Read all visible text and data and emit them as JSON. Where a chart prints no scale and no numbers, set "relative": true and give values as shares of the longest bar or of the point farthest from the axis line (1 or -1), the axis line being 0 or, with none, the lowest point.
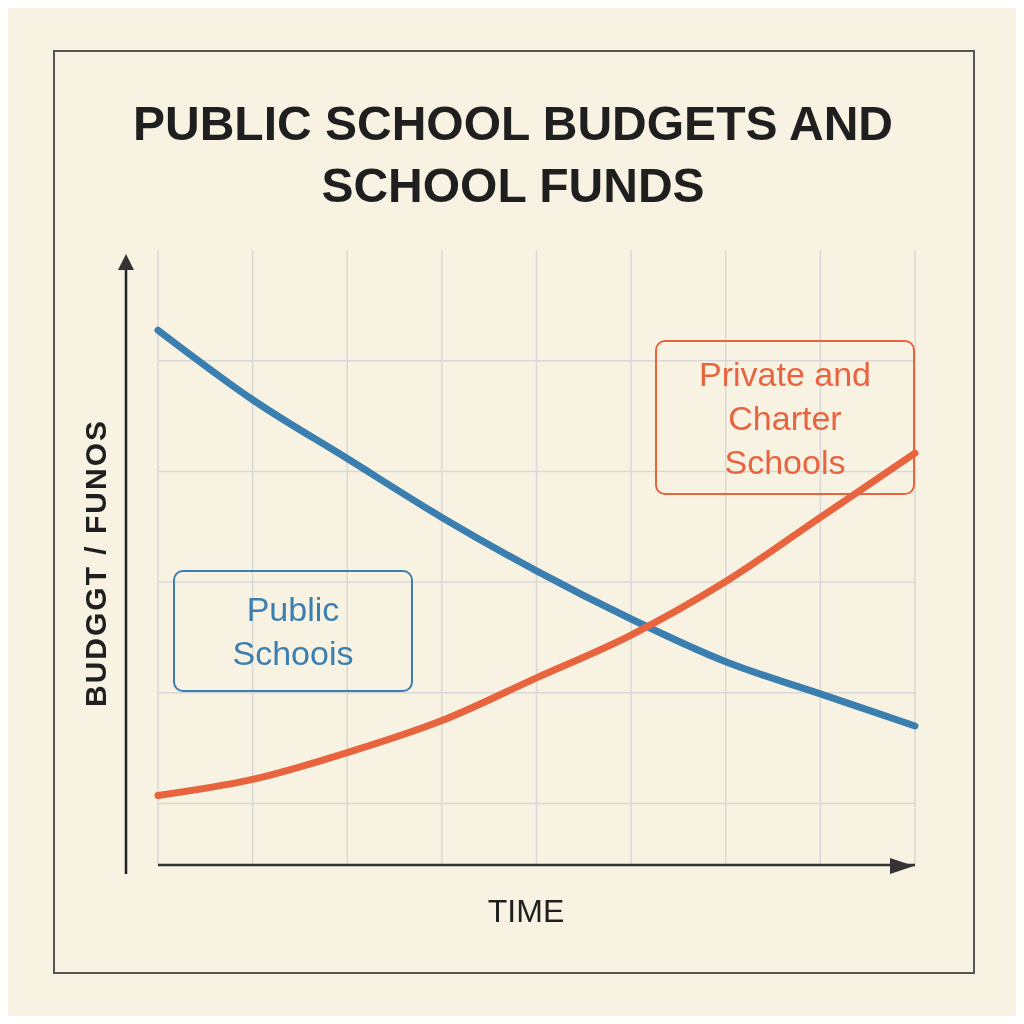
{
  "chart_data": {
    "type": "line",
    "title": "PUBLIC SCHOOL BUDGETS AND SCHOOL FUNDS",
    "xlabel": "TIME",
    "ylabel": "BUDGGT / FUNOS",
    "relative": true,
    "grid": true,
    "legend": false,
    "marker": "none",
    "line_style": "solid",
    "categories": [
      null,
      null,
      null,
      null,
      null,
      null,
      null,
      null,
      null
    ],
    "series": [
      {
        "name": "Public Schoois",
        "color": "#3a7fb0",
        "values": [
          1,
          0.87,
          0.76,
          0.65,
          0.55,
          0.46,
          0.38,
          0.32,
          0.26
        ]
      },
      {
        "name": "Private and Charter Schools",
        "color": "#e8643f",
        "values": [
          0.13,
          0.16,
          0.21,
          0.27,
          0.35,
          0.43,
          0.53,
          0.65,
          0.77
        ]
      }
    ]
  }
}
